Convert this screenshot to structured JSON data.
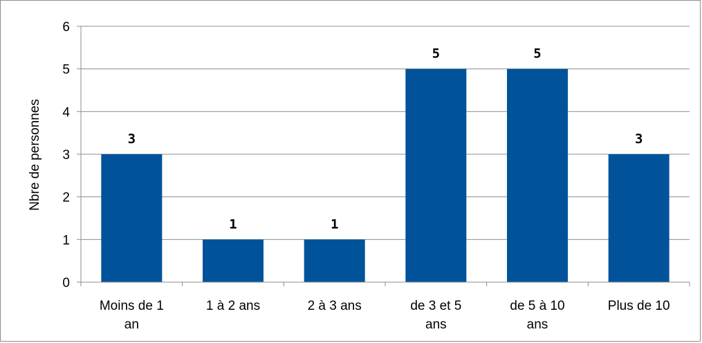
{
  "chart_data": {
    "type": "bar",
    "title": "",
    "xlabel": "",
    "ylabel": "Nbre de personnes",
    "categories": [
      [
        "Moins de 1",
        "an"
      ],
      [
        "1 à 2 ans"
      ],
      [
        "2 à 3 ans"
      ],
      [
        "de 3 et 5",
        "ans"
      ],
      [
        "de 5 à 10",
        "ans"
      ],
      [
        "Plus de 10"
      ]
    ],
    "values": [
      3,
      1,
      1,
      5,
      5,
      3
    ],
    "ylim": [
      0,
      6
    ],
    "yticks": [
      "0",
      "1",
      "2",
      "3",
      "4",
      "5",
      "6"
    ],
    "data_labels": [
      "3",
      "1",
      "1",
      "5",
      "5",
      "3"
    ],
    "grid": true,
    "legend": "none",
    "colors": {
      "bar": "#00539b",
      "grid": "#8c8c8c",
      "axis": "#8c8c8c"
    }
  }
}
